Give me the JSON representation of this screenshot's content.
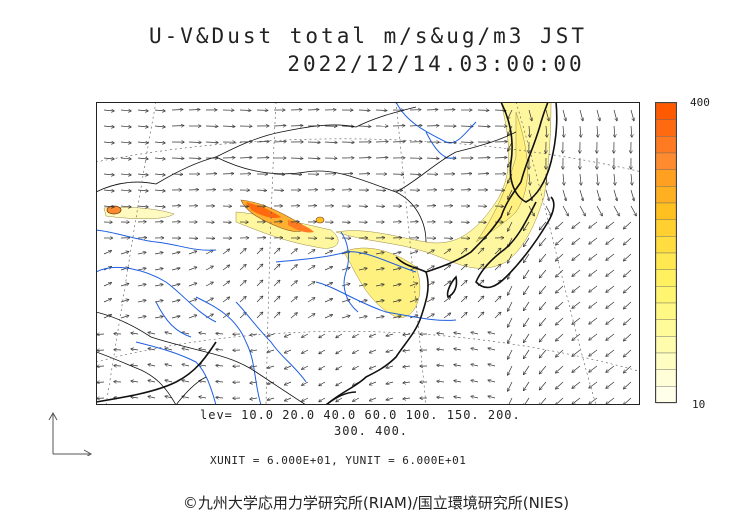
{
  "title": {
    "line1": "U-V&Dust total m/s&ug/m3 JST",
    "line2": "2022/12/14.03:00:00"
  },
  "colorbar": {
    "max_label": "400",
    "min_label": "10",
    "colors": [
      "#ff5a00",
      "#ff6a10",
      "#ff7a20",
      "#ff8b30",
      "#ffa020",
      "#ffb020",
      "#ffc020",
      "#ffd030",
      "#ffdc40",
      "#ffe850",
      "#fff060",
      "#fff570",
      "#fff885",
      "#fffa9a",
      "#fffcae",
      "#fffdc2",
      "#fffed6",
      "#ffffea"
    ]
  },
  "levels": {
    "line1": "lev= 10.0 20.0 40.0 60.0 100. 150. 200.",
    "line2": "300. 400."
  },
  "units": "XUNIT = 6.000E+01, YUNIT = 6.000E+01",
  "copyright": "©九州大学応用力学研究所(RIAM)/国立環境研究所(NIES)",
  "colors": {
    "coast": "#111111",
    "river": "#1f5fe0",
    "vector": "#333333",
    "dust_low": "#fffab0",
    "dust_high": "#ff5a00"
  }
}
